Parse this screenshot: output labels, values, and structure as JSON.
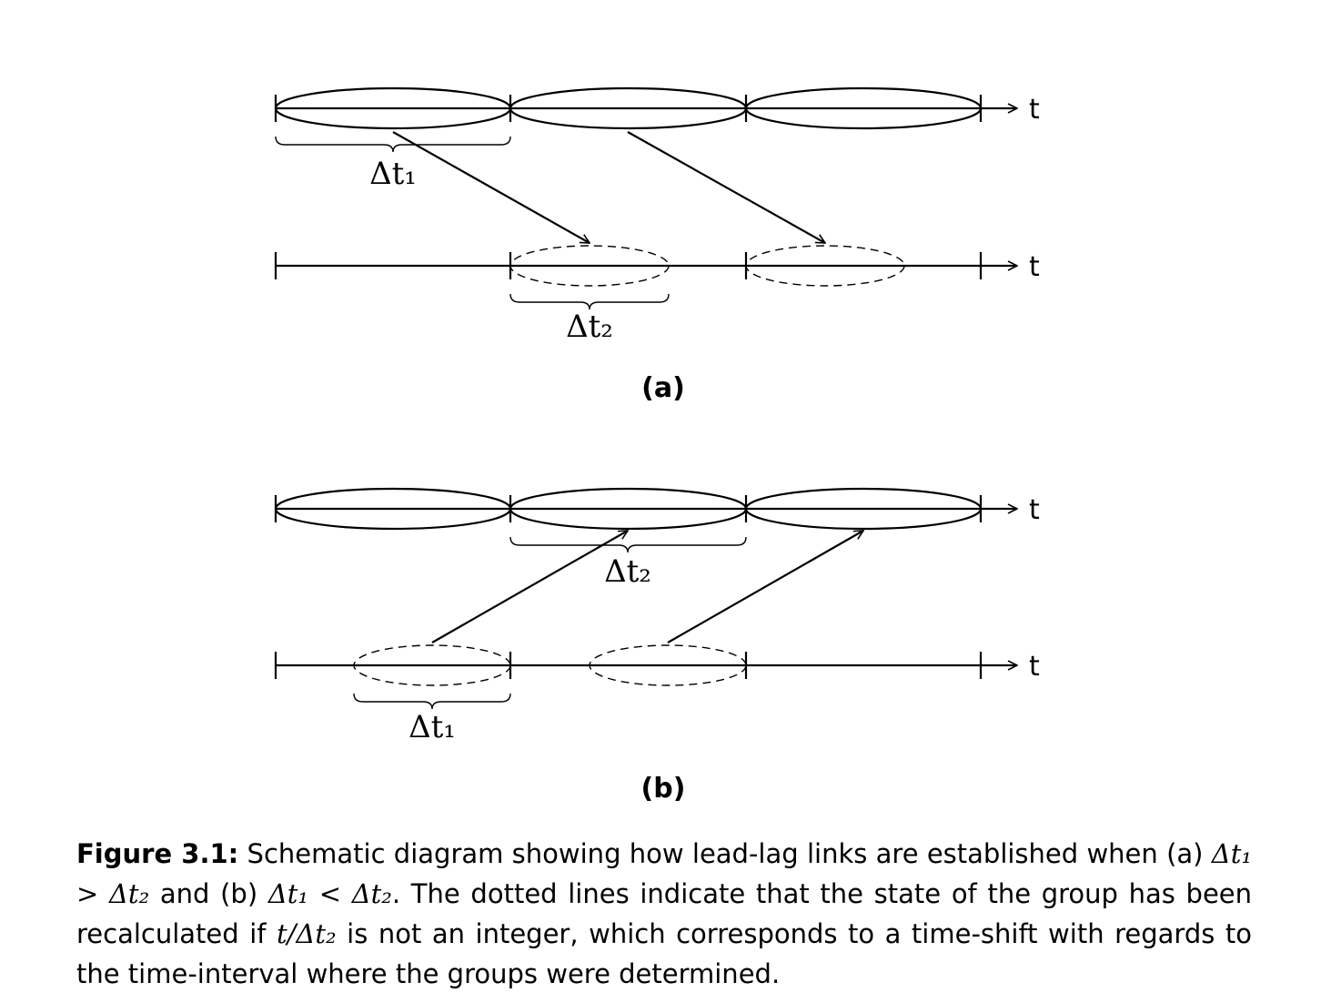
{
  "axis_label": "t",
  "labels": {
    "a_top_brace": "Δt₁",
    "a_bottom_brace": "Δt₂",
    "b_top_brace": "Δt₂",
    "b_bottom_brace": "Δt₁"
  },
  "panels": {
    "a": "(a)",
    "b": "(b)"
  },
  "caption": {
    "label": "Figure 3.1:",
    "text_1": " Schematic diagram showing how lead-lag links are established when (a) ",
    "math_1": "Δt₁ > Δt₂",
    "text_2": " and (b) ",
    "math_2": "Δt₁ < Δt₂",
    "text_3": ". The dotted lines indicate that the state of the group has been recalculated if ",
    "math_3": "t/Δt₂",
    "text_4": " is not an integer, which corresponds to a time-shift with regards to the time-interval where the groups were determined."
  }
}
